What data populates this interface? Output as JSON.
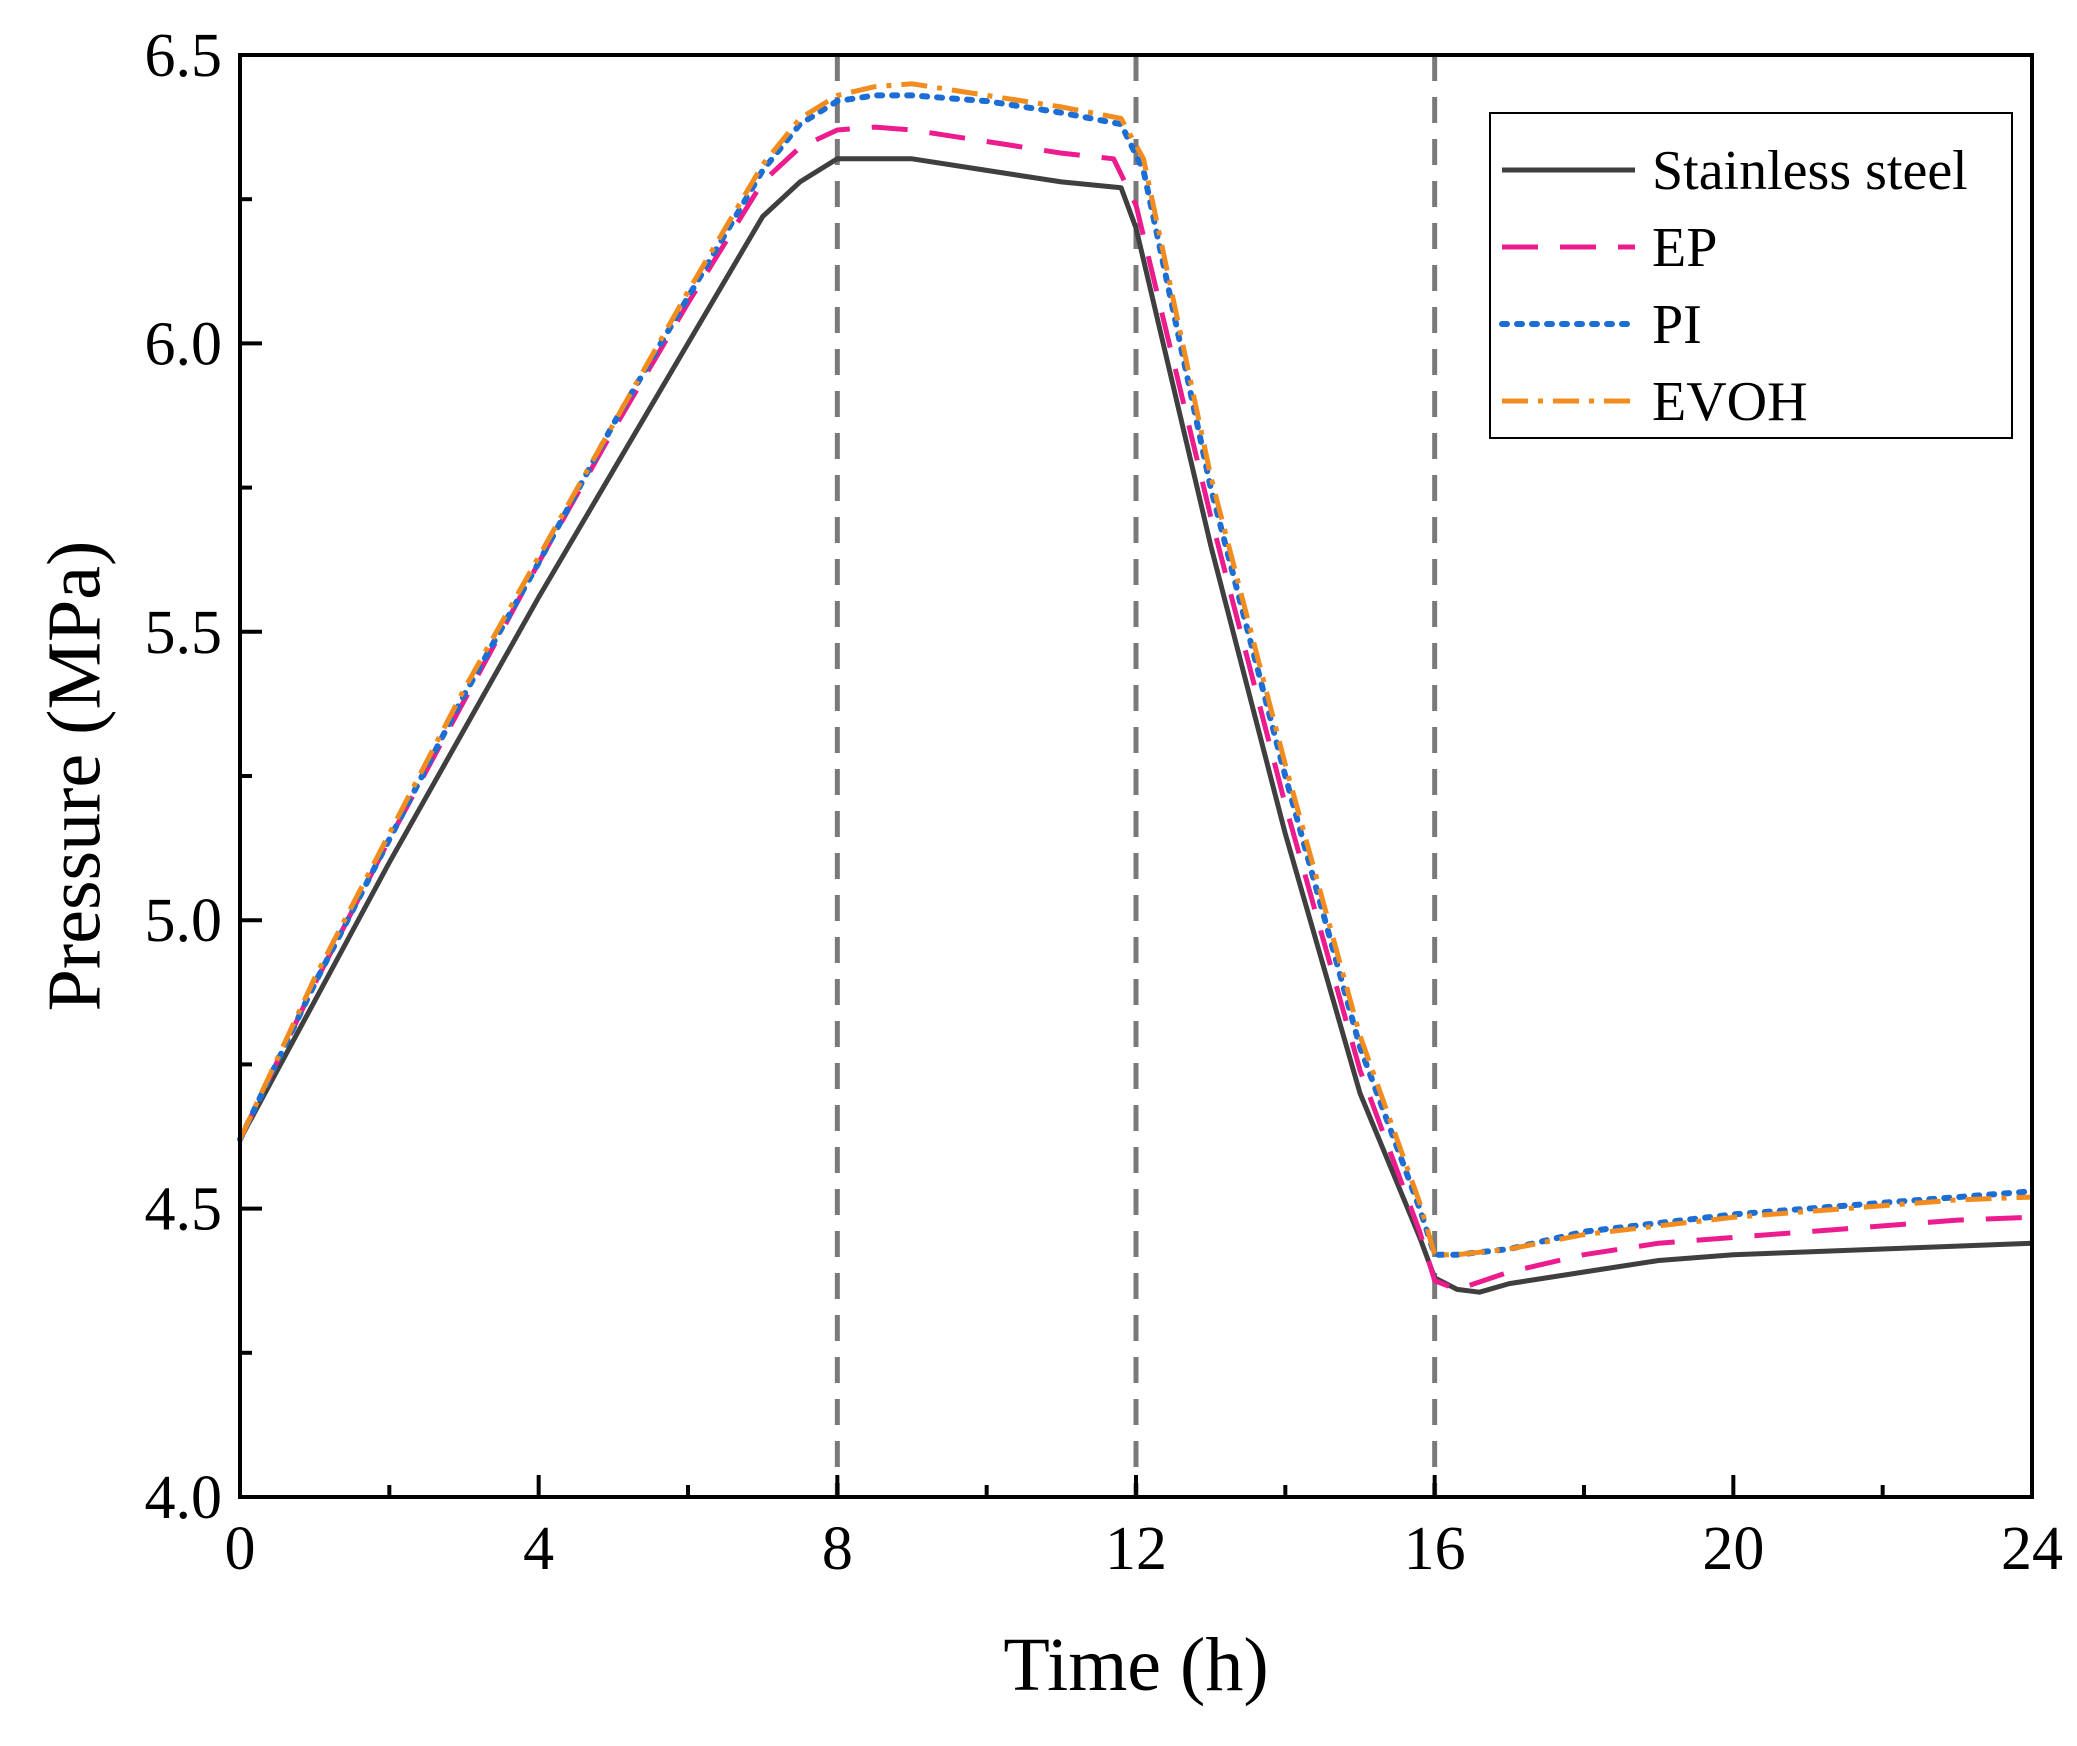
{
  "chart_data": {
    "type": "line",
    "title": "",
    "xlabel": "Time (h)",
    "ylabel": "Pressure (MPa)",
    "xlim": [
      0,
      24
    ],
    "ylim": [
      4.0,
      6.5
    ],
    "xticks": [
      0,
      4,
      8,
      12,
      16,
      20,
      24
    ],
    "xtick_labels": [
      "0",
      "4",
      "8",
      "12",
      "16",
      "20",
      "24"
    ],
    "x_minor_ticks": [
      2,
      6,
      10,
      14,
      18,
      22
    ],
    "yticks": [
      4.0,
      4.5,
      5.0,
      5.5,
      6.0,
      6.5
    ],
    "ytick_labels": [
      "4.0",
      "4.5",
      "5.0",
      "5.5",
      "6.0",
      "6.5"
    ],
    "y_minor_ticks": [
      4.25,
      4.75,
      5.25,
      5.75,
      6.25
    ],
    "vlines": [
      8,
      12,
      16
    ],
    "grid": false,
    "legend_position": "top-right",
    "series": [
      {
        "name": "Stainless steel",
        "color": "#3f3f3f",
        "style": "solid",
        "x": [
          0,
          1,
          2,
          3,
          4,
          5,
          6,
          7,
          7.5,
          8,
          8.5,
          9,
          10,
          11,
          11.8,
          12,
          13,
          14,
          15,
          15.8,
          16,
          16.3,
          16.6,
          17,
          18,
          19,
          20,
          21,
          22,
          23,
          24
        ],
        "y": [
          4.62,
          4.86,
          5.1,
          5.33,
          5.56,
          5.78,
          6.0,
          6.22,
          6.28,
          6.32,
          6.32,
          6.32,
          6.3,
          6.28,
          6.27,
          6.2,
          5.65,
          5.15,
          4.7,
          4.45,
          4.38,
          4.36,
          4.355,
          4.37,
          4.39,
          4.41,
          4.42,
          4.425,
          4.43,
          4.435,
          4.44
        ]
      },
      {
        "name": "EP",
        "color": "#ec1c8f",
        "style": "dashed",
        "x": [
          0,
          1,
          2,
          3,
          4,
          5,
          6,
          7,
          7.5,
          8,
          8.5,
          9,
          10,
          11,
          11.7,
          12,
          13,
          14,
          15,
          15.8,
          16,
          16.3,
          17,
          18,
          19,
          20,
          21,
          22,
          23,
          24
        ],
        "y": [
          4.62,
          4.89,
          5.14,
          5.38,
          5.62,
          5.85,
          6.07,
          6.28,
          6.34,
          6.37,
          6.375,
          6.37,
          6.35,
          6.33,
          6.32,
          6.24,
          5.7,
          5.2,
          4.74,
          4.46,
          4.375,
          4.36,
          4.39,
          4.42,
          4.44,
          4.45,
          4.46,
          4.47,
          4.48,
          4.485
        ]
      },
      {
        "name": "PI",
        "color": "#1c6ed4",
        "style": "dotted",
        "x": [
          0,
          1,
          2,
          3,
          4,
          5,
          6,
          7,
          7.5,
          8,
          8.5,
          9,
          10,
          11,
          11.8,
          12.1,
          13,
          14,
          15,
          15.8,
          16,
          16.3,
          17,
          18,
          19,
          20,
          21,
          22,
          23,
          24
        ],
        "y": [
          4.62,
          4.89,
          5.14,
          5.39,
          5.62,
          5.86,
          6.08,
          6.3,
          6.38,
          6.42,
          6.43,
          6.43,
          6.42,
          6.4,
          6.38,
          6.3,
          5.75,
          5.25,
          4.78,
          4.5,
          4.42,
          4.42,
          4.43,
          4.46,
          4.475,
          4.49,
          4.5,
          4.51,
          4.52,
          4.53
        ]
      },
      {
        "name": "EVOH",
        "color": "#f28c1e",
        "style": "dashdot",
        "x": [
          0,
          1,
          2,
          3,
          4,
          5,
          6,
          7,
          7.5,
          8,
          8.5,
          9,
          10,
          11,
          11.8,
          12.1,
          13,
          14,
          15,
          15.8,
          16,
          16.3,
          17,
          18,
          19,
          20,
          21,
          22,
          23,
          24
        ],
        "y": [
          4.62,
          4.9,
          5.15,
          5.4,
          5.63,
          5.86,
          6.09,
          6.31,
          6.39,
          6.43,
          6.445,
          6.45,
          6.43,
          6.41,
          6.39,
          6.32,
          5.77,
          5.27,
          4.8,
          4.51,
          4.42,
          4.42,
          4.43,
          4.455,
          4.47,
          4.485,
          4.495,
          4.505,
          4.515,
          4.52
        ]
      }
    ]
  }
}
